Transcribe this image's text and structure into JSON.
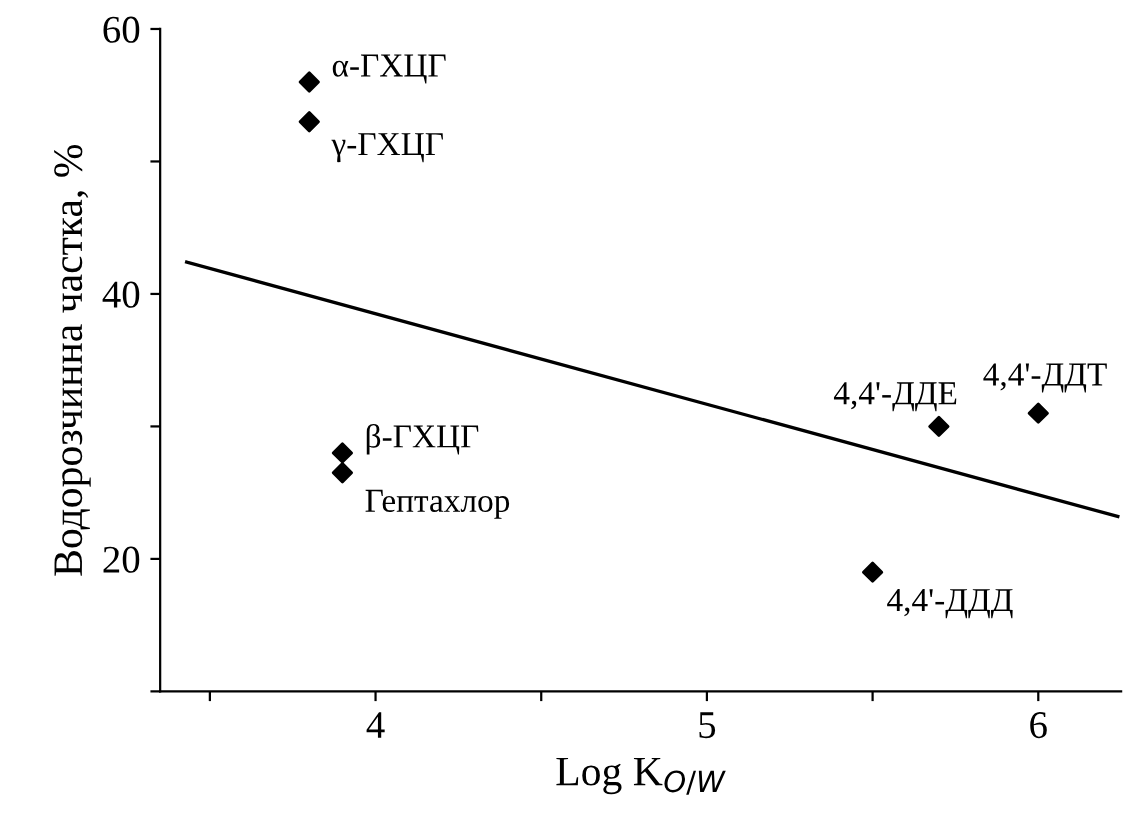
{
  "chart_data": {
    "type": "scatter",
    "xlabel": "Log K$_{O/W}$",
    "ylabel": "Водорозчинна частка, %",
    "series": [
      {
        "color": "#000000",
        "marker": "diamond",
        "x": [
          3.8,
          3.8,
          3.9,
          3.9,
          5.7,
          6.0,
          5.5
        ],
        "values": [
          56,
          53,
          28,
          26.5,
          30,
          31,
          19
        ]
      },
      {
        "type": "line",
        "color": "#000000",
        "line_style": "solid",
        "x": [
          3.43,
          6.24
        ],
        "values": [
          42.4,
          23.2
        ]
      }
    ],
    "annotations": [
      {
        "text": "α-ГХЦГ",
        "x": 3.8,
        "y": 56
      },
      {
        "text": "γ-ГХЦГ",
        "x": 3.8,
        "y": 53
      },
      {
        "text": "β-ГХЦГ",
        "x": 3.9,
        "y": 28
      },
      {
        "text": "Гептахлор",
        "x": 3.9,
        "y": 26.5
      },
      {
        "text": "4,4'-ДДЕ",
        "x": 5.7,
        "y": 30
      },
      {
        "text": "4,4'-ДДТ",
        "x": 6.0,
        "y": 31
      },
      {
        "text": "4,4'-ДДД",
        "x": 5.5,
        "y": 19
      }
    ],
    "xlim": [
      3.35,
      6.25
    ],
    "ylim": [
      10,
      60
    ],
    "xticks": [
      {
        "value": 3.5,
        "label": null
      },
      4,
      {
        "value": 4.5,
        "label": null
      },
      5,
      {
        "value": 5.5,
        "label": null
      },
      6
    ],
    "yticks": [
      {
        "value": 10,
        "label": null
      },
      20,
      {
        "value": 30,
        "label": null
      },
      40,
      {
        "value": 50,
        "label": null
      },
      60
    ],
    "grid": false,
    "legend": false
  }
}
